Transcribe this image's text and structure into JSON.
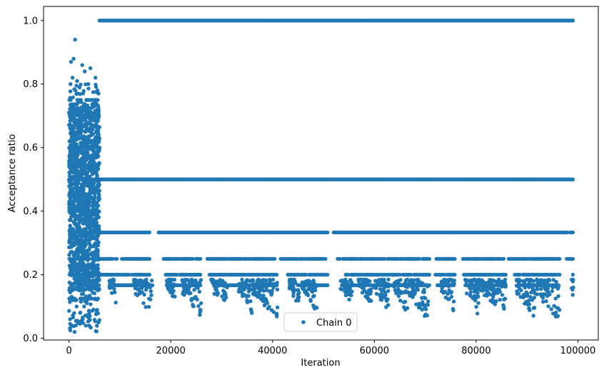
{
  "chart_data": {
    "type": "scatter",
    "xlabel": "Iteration",
    "ylabel": "Acceptance ratio",
    "xlim": [
      -5000,
      104000
    ],
    "ylim": [
      -0.0055,
      1.0445
    ],
    "xticks": [
      0,
      20000,
      40000,
      60000,
      80000,
      100000
    ],
    "xtick_labels": [
      "0",
      "20000",
      "40000",
      "60000",
      "80000",
      "100000"
    ],
    "yticks": [
      0.0,
      0.2,
      0.4,
      0.6,
      0.8,
      1.0
    ],
    "ytick_labels": [
      "0.0",
      "0.2",
      "0.4",
      "0.6",
      "0.8",
      "1.0"
    ],
    "grid": false,
    "legend_position": "bottom-center",
    "series": [
      {
        "name": "Chain 0",
        "color": "#1f77b4",
        "marker": "circle",
        "x_range": [
          0,
          99000
        ],
        "burn_in": {
          "x_range": [
            0,
            6000
          ],
          "y_range": [
            0.02,
            0.94
          ],
          "dense_band": [
            0.15,
            0.74
          ],
          "points": [
            [
              1200,
              0.94
            ],
            [
              900,
              0.88
            ],
            [
              400,
              0.87
            ],
            [
              2600,
              0.86
            ],
            [
              700,
              0.82
            ],
            [
              3100,
              0.84
            ],
            [
              4200,
              0.85
            ],
            [
              5200,
              0.82
            ],
            [
              1600,
              0.81
            ],
            [
              3800,
              0.8
            ],
            [
              300,
              0.8
            ],
            [
              5600,
              0.78
            ],
            [
              200,
              0.06
            ],
            [
              600,
              0.04
            ],
            [
              1100,
              0.02
            ],
            [
              1900,
              0.05
            ],
            [
              2700,
              0.06
            ],
            [
              4100,
              0.07
            ],
            [
              5800,
              0.05
            ],
            [
              3300,
              0.04
            ],
            [
              2200,
              0.08
            ],
            [
              4800,
              0.09
            ],
            [
              1500,
              0.1
            ],
            [
              800,
              0.12
            ],
            [
              3500,
              0.11
            ]
          ]
        },
        "levels": [
          {
            "y": 1.0,
            "x_range": [
              6000,
              99000
            ],
            "gaps": []
          },
          {
            "y": 0.5,
            "x_range": [
              6000,
              99000
            ],
            "gaps": []
          },
          {
            "y": 0.333,
            "x_range": [
              6000,
              99000
            ],
            "gaps": [
              [
                16000,
                17500
              ],
              [
                51000,
                51800
              ],
              [
                98000,
                98300
              ]
            ]
          },
          {
            "y": 0.25,
            "x_range": [
              6000,
              99000
            ],
            "gaps": [
              [
                9500,
                10200
              ],
              [
                16000,
                18500
              ],
              [
                26200,
                27000
              ],
              [
                40500,
                41500
              ],
              [
                50800,
                52600
              ],
              [
                71000,
                72000
              ],
              [
                76000,
                77200
              ],
              [
                85500,
                86300
              ],
              [
                96500,
                97600
              ]
            ]
          },
          {
            "y": 0.2,
            "x_range": [
              6000,
              99000
            ],
            "gaps": [
              [
                16000,
                18800
              ],
              [
                26000,
                27500
              ],
              [
                41000,
                42800
              ],
              [
                51000,
                54300
              ],
              [
                71000,
                71700
              ],
              [
                76000,
                77500
              ],
              [
                86000,
                87400
              ],
              [
                96500,
                98800
              ]
            ]
          },
          {
            "y": 0.167,
            "x_range": [
              8000,
              96000
            ],
            "gaps": [
              [
                16500,
                19000
              ],
              [
                26000,
                28500
              ],
              [
                41000,
                45000
              ],
              [
                51000,
                55000
              ],
              [
                71000,
                72000
              ],
              [
                76000,
                78000
              ],
              [
                86000,
                88000
              ]
            ]
          }
        ],
        "dips": [
          {
            "x_range": [
              7800,
              9200
            ],
            "min_y": 0.11
          },
          {
            "x_range": [
              12700,
              16300
            ],
            "min_y": 0.065
          },
          {
            "x_range": [
              19200,
              21000
            ],
            "min_y": 0.11
          },
          {
            "x_range": [
              22200,
              26000
            ],
            "min_y": 0.06
          },
          {
            "x_range": [
              27900,
              31200
            ],
            "min_y": 0.09
          },
          {
            "x_range": [
              33300,
              36000
            ],
            "min_y": 0.075
          },
          {
            "x_range": [
              36000,
              41000
            ],
            "min_y": 0.06
          },
          {
            "x_range": [
              43200,
              45300
            ],
            "min_y": 0.09
          },
          {
            "x_range": [
              45800,
              48700
            ],
            "min_y": 0.08
          },
          {
            "x_range": [
              53300,
              55700
            ],
            "min_y": 0.1
          },
          {
            "x_range": [
              56800,
              59400
            ],
            "min_y": 0.11
          },
          {
            "x_range": [
              59900,
              62800
            ],
            "min_y": 0.08
          },
          {
            "x_range": [
              63800,
              66600
            ],
            "min_y": 0.075
          },
          {
            "x_range": [
              66800,
              70600
            ],
            "min_y": 0.05
          },
          {
            "x_range": [
              73200,
              75800
            ],
            "min_y": 0.08
          },
          {
            "x_range": [
              77700,
              80600
            ],
            "min_y": 0.065
          },
          {
            "x_range": [
              80800,
              85800
            ],
            "min_y": 0.075
          },
          {
            "x_range": [
              87900,
              91500
            ],
            "min_y": 0.065
          },
          {
            "x_range": [
              91900,
              96400
            ],
            "min_y": 0.05
          },
          {
            "x_range": [
              98700,
              99100
            ],
            "min_y": 0.1
          }
        ]
      }
    ]
  }
}
